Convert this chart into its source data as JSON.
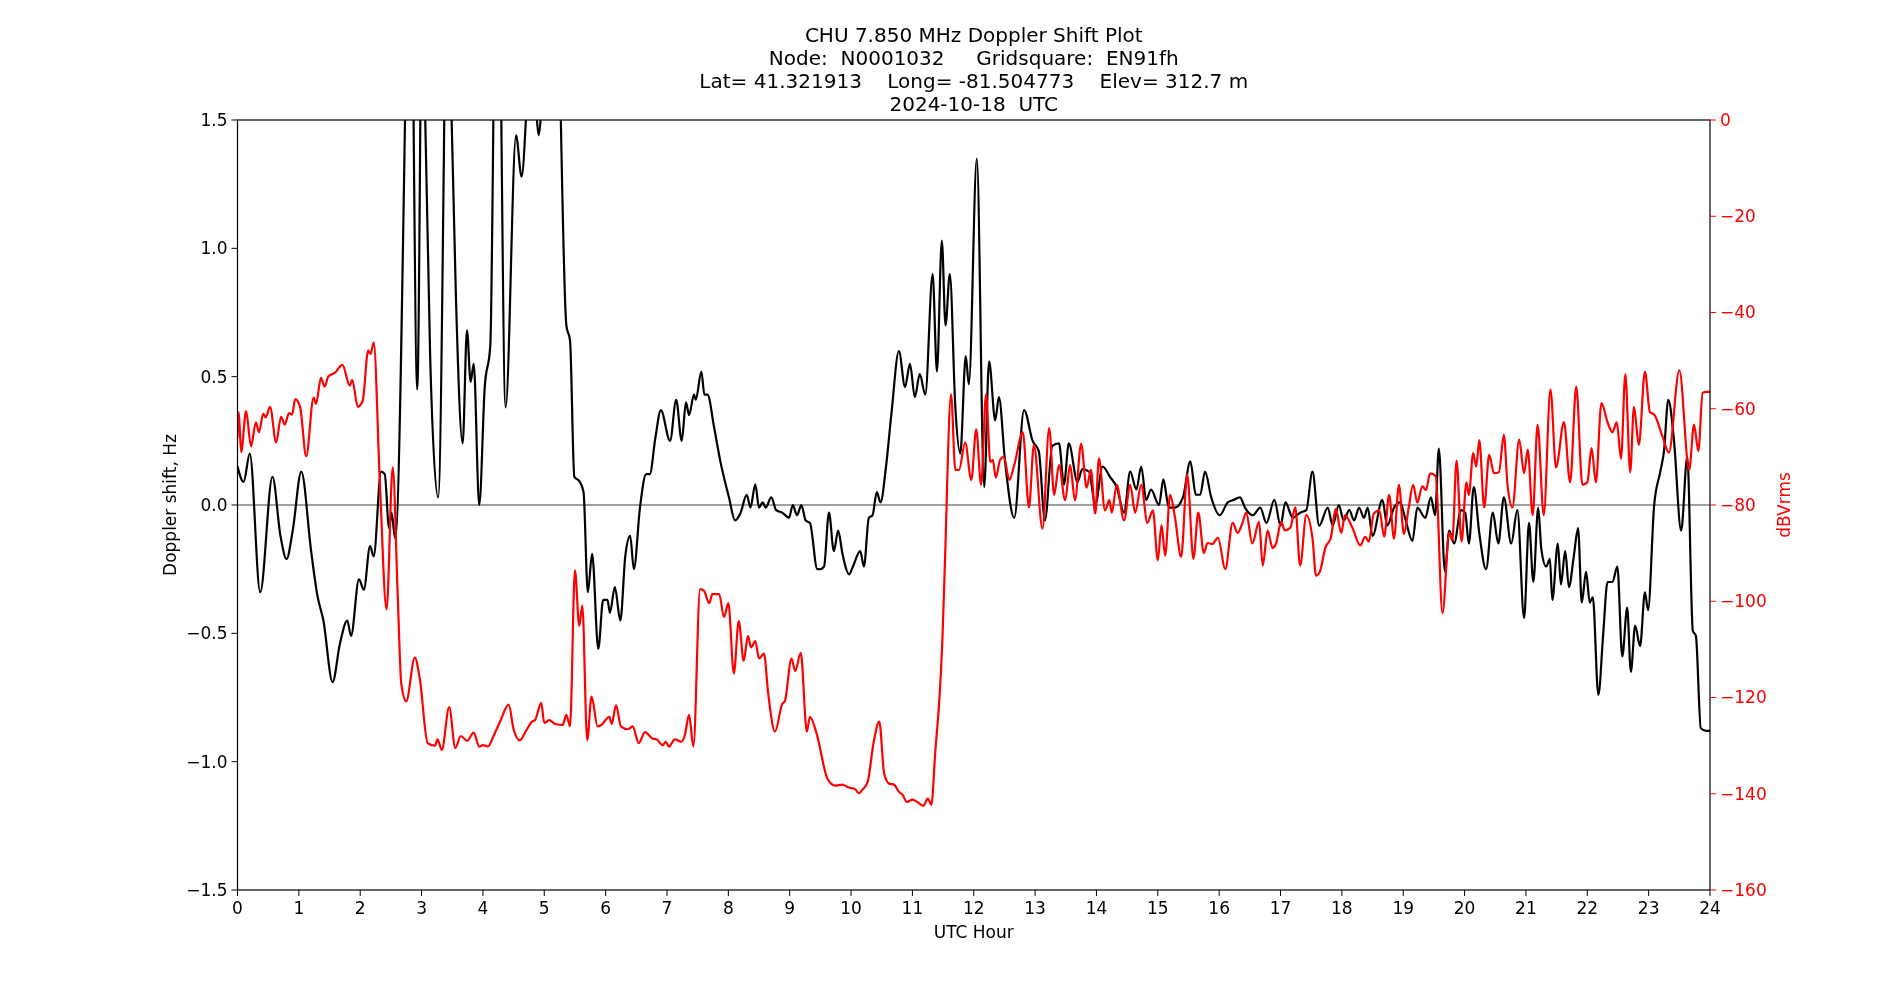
{
  "chart_data": {
    "type": "line",
    "title": "CHU 7.850 MHz Doppler Shift Plot",
    "subtitle": "Node:  N0001032     Gridsquare:  EN91fh\nLat= 41.321913    Long= -81.504773    Elev= 312.7 m\n2024-10-18  UTC",
    "xlabel": "UTC Hour",
    "ylabel": "Doppler shift, Hz",
    "y2label": "dBVrms",
    "xlim": [
      0,
      24
    ],
    "xticks": [
      0,
      1,
      2,
      3,
      4,
      5,
      6,
      7,
      8,
      9,
      10,
      11,
      12,
      13,
      14,
      15,
      16,
      17,
      18,
      19,
      20,
      21,
      22,
      23,
      24
    ],
    "ylim": [
      -1.5,
      1.5
    ],
    "yticks": [
      {
        "value": -1.5,
        "label": "−1.5"
      },
      {
        "value": -1,
        "label": "−1.0"
      },
      {
        "value": -0.5,
        "label": "−0.5"
      },
      {
        "value": 0,
        "label": "0.0"
      },
      {
        "value": 0.5,
        "label": "0.5"
      },
      {
        "value": 1,
        "label": "1.0"
      },
      {
        "value": 1.5,
        "label": "1.5"
      }
    ],
    "y2lim": [
      -160,
      0
    ],
    "y2ticks": [
      {
        "value": -160,
        "label": "−160"
      },
      {
        "value": -140,
        "label": "−140"
      },
      {
        "value": -120,
        "label": "−120"
      },
      {
        "value": -100,
        "label": "−100"
      },
      {
        "value": -80,
        "label": "−80"
      },
      {
        "value": -60,
        "label": "−60"
      },
      {
        "value": -40,
        "label": "−40"
      },
      {
        "value": -20,
        "label": "−20"
      },
      0
    ],
    "grid": false,
    "marker": "none",
    "line_style": "solid",
    "ref_lines": [
      {
        "axis": "y",
        "value": 0,
        "color": "#808080"
      }
    ],
    "series": [
      {
        "color": "#000000",
        "axis": "y",
        "x": [
          0,
          0.1,
          0.2,
          0.37,
          0.57,
          0.7,
          0.8,
          0.9,
          1.04,
          1.2,
          1.3,
          1.4,
          1.55,
          1.67,
          1.79,
          1.85,
          1.98,
          2.06,
          2.16,
          2.22,
          2.34,
          2.4,
          2.47,
          2.51,
          2.57,
          2.73,
          2.8,
          2.87,
          2.93,
          2.98,
          3.02,
          3.06,
          3.14,
          3.27,
          3.37,
          3.43,
          3.49,
          3.56,
          3.67,
          3.74,
          3.8,
          3.85,
          3.94,
          4.03,
          4.12,
          4.17,
          4.23,
          4.3,
          4.37,
          4.54,
          4.63,
          4.7,
          4.8,
          4.88,
          4.91,
          4.94,
          5.1,
          5.27,
          5.36,
          5.42,
          5.49,
          5.58,
          5.64,
          5.71,
          5.78,
          5.88,
          5.96,
          6.03,
          6.07,
          6.15,
          6.24,
          6.32,
          6.4,
          6.46,
          6.56,
          6.66,
          6.72,
          6.81,
          6.9,
          7.05,
          7.15,
          7.24,
          7.31,
          7.36,
          7.44,
          7.47,
          7.56,
          7.61,
          7.66,
          7.77,
          7.87,
          8.01,
          8.11,
          8.2,
          8.3,
          8.36,
          8.44,
          8.5,
          8.56,
          8.61,
          8.7,
          8.78,
          8.88,
          8.99,
          9.05,
          9.12,
          9.19,
          9.26,
          9.33,
          9.45,
          9.5,
          9.56,
          9.64,
          9.72,
          9.79,
          9.86,
          9.97,
          10.03,
          10.15,
          10.21,
          10.29,
          10.35,
          10.42,
          10.48,
          10.57,
          10.66,
          10.78,
          10.88,
          10.96,
          11.04,
          11.12,
          11.21,
          11.33,
          11.4,
          11.48,
          11.54,
          11.61,
          11.7,
          11.78,
          11.87,
          11.92,
          12.05,
          12.17,
          12.25,
          12.35,
          12.41,
          12.51,
          12.66,
          12.82,
          12.96,
          13.06,
          13.16,
          13.28,
          13.39,
          13.47,
          13.55,
          13.69,
          13.77,
          13.88,
          13.98,
          14.1,
          14.22,
          14.33,
          14.45,
          14.55,
          14.65,
          14.73,
          14.81,
          14.89,
          15.02,
          15.09,
          15.18,
          15.28,
          15.41,
          15.53,
          15.62,
          15.69,
          15.77,
          15.87,
          16.01,
          16.14,
          16.24,
          16.34,
          16.42,
          16.55,
          16.67,
          16.77,
          16.9,
          17.0,
          17.08,
          17.2,
          17.32,
          17.42,
          17.52,
          17.63,
          17.77,
          17.85,
          17.95,
          18.03,
          18.12,
          18.2,
          18.28,
          18.36,
          18.42,
          18.5,
          18.66,
          18.74,
          18.85,
          18.95,
          19.03,
          19.15,
          19.23,
          19.36,
          19.45,
          19.52,
          19.58,
          19.68,
          19.75,
          19.83,
          19.94,
          20.01,
          20.07,
          20.15,
          20.24,
          20.35,
          20.46,
          20.55,
          20.64,
          20.76,
          20.86,
          20.97,
          21.05,
          21.12,
          21.2,
          21.25,
          21.33,
          21.39,
          21.43,
          21.52,
          21.57,
          21.64,
          21.7,
          21.78,
          21.85,
          21.91,
          21.98,
          22.04,
          22.09,
          22.18,
          22.26,
          22.33,
          22.41,
          22.49,
          22.57,
          22.65,
          22.71,
          22.78,
          22.86,
          22.94,
          22.99,
          23.09,
          23.19,
          23.25,
          23.32,
          23.41,
          23.53,
          23.63,
          23.72,
          23.77,
          23.85,
          23.94,
          24
        ],
        "values": [
          0.15,
          0.09,
          0.2,
          -0.34,
          0.11,
          -0.12,
          -0.21,
          -0.1,
          0.13,
          -0.18,
          -0.35,
          -0.45,
          -0.69,
          -0.54,
          -0.45,
          -0.51,
          -0.29,
          -0.33,
          -0.16,
          -0.2,
          0.13,
          0.12,
          -0.09,
          -0.03,
          -0.13,
          1.5,
          null,
          1.5,
          0.45,
          1.5,
          null,
          1.5,
          0.58,
          0.03,
          1.5,
          null,
          1.5,
          0.81,
          0.24,
          0.68,
          0.48,
          0.55,
          0.0,
          0.46,
          0.62,
          1.5,
          null,
          1.5,
          0.38,
          1.44,
          1.28,
          1.5,
          null,
          1.5,
          1.44,
          1.5,
          null,
          1.5,
          0.7,
          0.64,
          0.11,
          0.09,
          0.05,
          -0.34,
          -0.19,
          -0.56,
          -0.37,
          -0.37,
          -0.42,
          -0.32,
          -0.45,
          -0.2,
          -0.12,
          -0.25,
          -0.01,
          0.12,
          0.12,
          0.26,
          0.37,
          0.25,
          0.41,
          0.25,
          0.4,
          0.35,
          0.43,
          0.41,
          0.52,
          0.43,
          0.43,
          0.3,
          0.17,
          0.03,
          -0.06,
          -0.03,
          0.04,
          -0.01,
          0.08,
          -0.01,
          0.01,
          -0.01,
          0.03,
          -0.02,
          -0.03,
          -0.05,
          0.0,
          -0.04,
          0.0,
          -0.06,
          -0.07,
          -0.25,
          -0.25,
          -0.24,
          -0.03,
          -0.18,
          -0.1,
          -0.19,
          -0.27,
          -0.24,
          -0.18,
          -0.24,
          -0.05,
          -0.04,
          0.05,
          0.01,
          0.15,
          0.36,
          0.6,
          0.46,
          0.55,
          0.42,
          0.51,
          0.43,
          0.9,
          0.52,
          1.03,
          0.7,
          0.9,
          0.38,
          0.2,
          0.58,
          0.47,
          1.35,
          0.07,
          0.56,
          0.33,
          0.42,
          0.17,
          -0.05,
          0.37,
          0.25,
          0.21,
          -0.06,
          0.23,
          0.24,
          0.08,
          0.24,
          0.09,
          0.14,
          0.13,
          0.0,
          0.15,
          0.11,
          0.07,
          -0.03,
          0.13,
          0.06,
          0.15,
          0.02,
          0.06,
          0.0,
          0.1,
          -0.01,
          -0.01,
          0.03,
          0.17,
          0.04,
          0.04,
          0.13,
          0.03,
          -0.04,
          0.01,
          0.02,
          0.03,
          -0.01,
          -0.04,
          -0.01,
          -0.07,
          0.02,
          -0.08,
          0.01,
          -0.05,
          -0.03,
          -0.02,
          0.13,
          -0.08,
          -0.01,
          -0.08,
          0.0,
          -0.06,
          -0.02,
          -0.06,
          -0.01,
          -0.05,
          -0.01,
          -0.12,
          0.02,
          -0.08,
          -0.01,
          0.01,
          -0.05,
          -0.14,
          -0.01,
          -0.05,
          0.03,
          -0.04,
          0.22,
          -0.26,
          -0.1,
          -0.15,
          -0.02,
          -0.03,
          -0.15,
          0.07,
          -0.11,
          -0.25,
          -0.03,
          -0.15,
          0.03,
          -0.15,
          -0.02,
          -0.44,
          -0.07,
          -0.3,
          -0.01,
          -0.17,
          -0.24,
          -0.21,
          -0.37,
          -0.15,
          -0.31,
          -0.18,
          -0.32,
          -0.2,
          -0.09,
          -0.38,
          -0.26,
          -0.38,
          -0.36,
          -0.74,
          -0.5,
          -0.3,
          -0.3,
          -0.24,
          -0.59,
          -0.4,
          -0.65,
          -0.47,
          -0.55,
          -0.34,
          -0.41,
          0.0,
          0.13,
          0.21,
          0.41,
          0.26,
          -0.1,
          0.19,
          -0.49,
          -0.51,
          -0.87,
          -0.88,
          -0.88
        ]
      },
      {
        "color": "#ff0000",
        "axis": "y2",
        "x": [
          0,
          0.02,
          0.06,
          0.14,
          0.22,
          0.3,
          0.35,
          0.42,
          0.46,
          0.53,
          0.63,
          0.71,
          0.77,
          0.84,
          0.89,
          0.94,
          1.02,
          1.12,
          1.24,
          1.28,
          1.36,
          1.42,
          1.48,
          1.59,
          1.71,
          1.83,
          1.87,
          1.96,
          2.04,
          2.13,
          2.17,
          2.22,
          2.32,
          2.43,
          2.53,
          2.61,
          2.67,
          2.75,
          2.89,
          2.97,
          3.1,
          3.22,
          3.26,
          3.33,
          3.45,
          3.55,
          3.64,
          3.74,
          3.85,
          3.94,
          4.0,
          4.08,
          4.18,
          4.28,
          4.42,
          4.5,
          4.6,
          4.7,
          4.8,
          4.85,
          4.95,
          5.0,
          5.08,
          5.18,
          5.3,
          5.36,
          5.42,
          5.5,
          5.57,
          5.62,
          5.7,
          5.77,
          5.87,
          5.93,
          6.06,
          6.1,
          6.17,
          6.25,
          6.36,
          6.44,
          6.54,
          6.64,
          6.76,
          6.83,
          6.93,
          6.98,
          7.03,
          7.13,
          7.23,
          7.29,
          7.36,
          7.43,
          7.54,
          7.6,
          7.69,
          7.74,
          7.85,
          7.93,
          8.0,
          8.09,
          8.17,
          8.25,
          8.32,
          8.37,
          8.44,
          8.5,
          8.58,
          8.65,
          8.76,
          8.88,
          8.92,
          9.03,
          9.09,
          9.18,
          9.28,
          9.33,
          9.43,
          9.62,
          9.74,
          9.86,
          9.94,
          10.07,
          10.13,
          10.19,
          10.27,
          10.37,
          10.46,
          10.54,
          10.62,
          10.7,
          10.78,
          10.84,
          10.91,
          11.0,
          11.08,
          11.18,
          11.25,
          11.31,
          11.37,
          11.45,
          11.49,
          11.53,
          11.63,
          11.7,
          11.76,
          11.86,
          11.96,
          12.04,
          12.12,
          12.2,
          12.27,
          12.31,
          12.36,
          12.43,
          12.49,
          12.58,
          12.66,
          12.8,
          12.9,
          12.98,
          13.12,
          13.23,
          13.31,
          13.39,
          13.49,
          13.57,
          13.65,
          13.75,
          13.84,
          13.91,
          13.98,
          14.04,
          14.14,
          14.21,
          14.25,
          14.33,
          14.45,
          14.55,
          14.63,
          14.73,
          14.83,
          14.92,
          15.0,
          15.06,
          15.12,
          15.2,
          15.28,
          15.38,
          15.48,
          15.58,
          15.66,
          15.75,
          15.81,
          15.89,
          15.98,
          16.1,
          16.22,
          16.3,
          16.38,
          16.44,
          16.54,
          16.65,
          16.71,
          16.79,
          16.87,
          16.93,
          17.01,
          17.07,
          17.16,
          17.24,
          17.32,
          17.42,
          17.52,
          17.58,
          17.64,
          17.73,
          17.82,
          17.9,
          17.99,
          18.05,
          18.17,
          18.3,
          18.38,
          18.44,
          18.52,
          18.61,
          18.69,
          18.77,
          18.85,
          18.93,
          19.01,
          19.09,
          19.16,
          19.23,
          19.31,
          19.37,
          19.44,
          19.53,
          19.64,
          19.75,
          19.8,
          19.87,
          19.95,
          20.03,
          20.07,
          20.14,
          20.19,
          20.24,
          20.32,
          20.4,
          20.48,
          20.56,
          20.64,
          20.7,
          20.78,
          20.89,
          20.97,
          21.03,
          21.11,
          21.19,
          21.29,
          21.4,
          21.49,
          21.62,
          21.72,
          21.82,
          21.92,
          22.0,
          22.07,
          22.14,
          22.23,
          22.33,
          22.41,
          22.48,
          22.55,
          22.62,
          22.7,
          22.76,
          22.84,
          22.94,
          23.02,
          23.09,
          23.23,
          23.33,
          23.5,
          23.66,
          23.74,
          23.81,
          23.88,
          23.94,
          24
        ],
        "values": [
          -66,
          -60.7,
          -69,
          -60.5,
          -67.8,
          -62.8,
          -64.9,
          -61,
          -61.8,
          -59.6,
          -67,
          -61.7,
          -63.3,
          -60.9,
          -61.2,
          -58,
          -59.6,
          -69.9,
          -57.7,
          -59,
          -53.6,
          -55.4,
          -53.3,
          -52.5,
          -50.9,
          -55.2,
          -54,
          -59.6,
          -58.4,
          -47.9,
          -48.6,
          -46.2,
          -75.3,
          -101.7,
          -72.2,
          -98.3,
          -117.2,
          -120.8,
          -111.7,
          -116,
          -129.5,
          -130,
          -128.7,
          -130.9,
          -122,
          -130.5,
          -128,
          -129,
          -127.3,
          -130.2,
          -129.9,
          -130.2,
          -127.8,
          -125,
          -121.5,
          -126.6,
          -128.9,
          -127,
          -125,
          -124.7,
          -121.1,
          -125.3,
          -124.7,
          -125.5,
          -125.7,
          -123.6,
          -126,
          -93.6,
          -105.1,
          -100.9,
          -128.9,
          -119.8,
          -126,
          -125.7,
          -124,
          -125.5,
          -121.6,
          -126,
          -126.6,
          -126,
          -129.5,
          -127.2,
          -128.5,
          -128.7,
          -129.9,
          -129.2,
          -130.2,
          -128.7,
          -129.2,
          -127.9,
          -123.6,
          -130.2,
          -97.5,
          -97.8,
          -100.4,
          -98.5,
          -98.5,
          -103.3,
          -100.4,
          -115,
          -104.1,
          -112.4,
          -107.2,
          -109.6,
          -108.3,
          -111.9,
          -110.9,
          -119.2,
          -127.1,
          -121.3,
          -120.8,
          -111.9,
          -114.5,
          -110.7,
          -127.1,
          -124,
          -127.1,
          -137,
          -138.3,
          -138.1,
          -138.6,
          -139.1,
          -139.9,
          -139.1,
          -137.6,
          -129.2,
          -125,
          -135.8,
          -137.9,
          -138.1,
          -139.6,
          -140.2,
          -141.7,
          -141.2,
          -141.7,
          -142.5,
          -141,
          -142.3,
          -131.8,
          -118.2,
          -107.7,
          -92,
          -57,
          -72.7,
          -72.7,
          -67,
          -74.8,
          -64.3,
          -75.8,
          -57,
          -71.1,
          -70.6,
          -74.3,
          -70.6,
          -70,
          -74.8,
          -71.7,
          -64.9,
          -80.5,
          -67.5,
          -84.9,
          -64,
          -77.9,
          -71.7,
          -79,
          -71.7,
          -79,
          -67.3,
          -76.4,
          -72.7,
          -81.8,
          -70.3,
          -81.1,
          -79,
          -81.6,
          -75.8,
          -83.2,
          -75.8,
          -81.6,
          -75.8,
          -83.7,
          -81.1,
          -91.5,
          -84.2,
          -90.5,
          -77.9,
          -82.6,
          -90.8,
          -73.7,
          -91.2,
          -81.6,
          -90,
          -87.9,
          -88.1,
          -86.8,
          -93.3,
          -83.7,
          -85.8,
          -83.7,
          -81.6,
          -88,
          -83.5,
          -92.6,
          -85.3,
          -88.9,
          -87.9,
          -83.5,
          -85.3,
          -84.7,
          -80.5,
          -92.6,
          -82.1,
          -86.8,
          -94.7,
          -93.9,
          -88.9,
          -86.8,
          -80.8,
          -85.8,
          -82.1,
          -84.7,
          -88.4,
          -86.6,
          -87.6,
          -81.8,
          -81.1,
          -86.6,
          -77.9,
          -87,
          -75.8,
          -86,
          -80.5,
          -75.8,
          -79.5,
          -76.1,
          -76.9,
          -73.4,
          -74,
          -102.5,
          -85.8,
          -87.4,
          -70.8,
          -87.6,
          -75.3,
          -77.9,
          -69.2,
          -72,
          -66.5,
          -80.5,
          -69.6,
          -73.4,
          -73.2,
          -65.4,
          -75.8,
          -80.5,
          -66.4,
          -73.4,
          -68.5,
          -82.1,
          -63.3,
          -82.1,
          -56,
          -72.2,
          -62.8,
          -75.3,
          -55.4,
          -75.8,
          -75.3,
          -68.2,
          -75.3,
          -58.8,
          -62.8,
          -64.9,
          -62.8,
          -70.4,
          -52.8,
          -73.2,
          -59.6,
          -67.5,
          -52.3,
          -60.7,
          -61.2,
          -65.9,
          -69.1,
          -52,
          -72.7,
          -63.3,
          -68.8,
          -56.7,
          -56.5,
          -56.5
        ]
      }
    ]
  }
}
